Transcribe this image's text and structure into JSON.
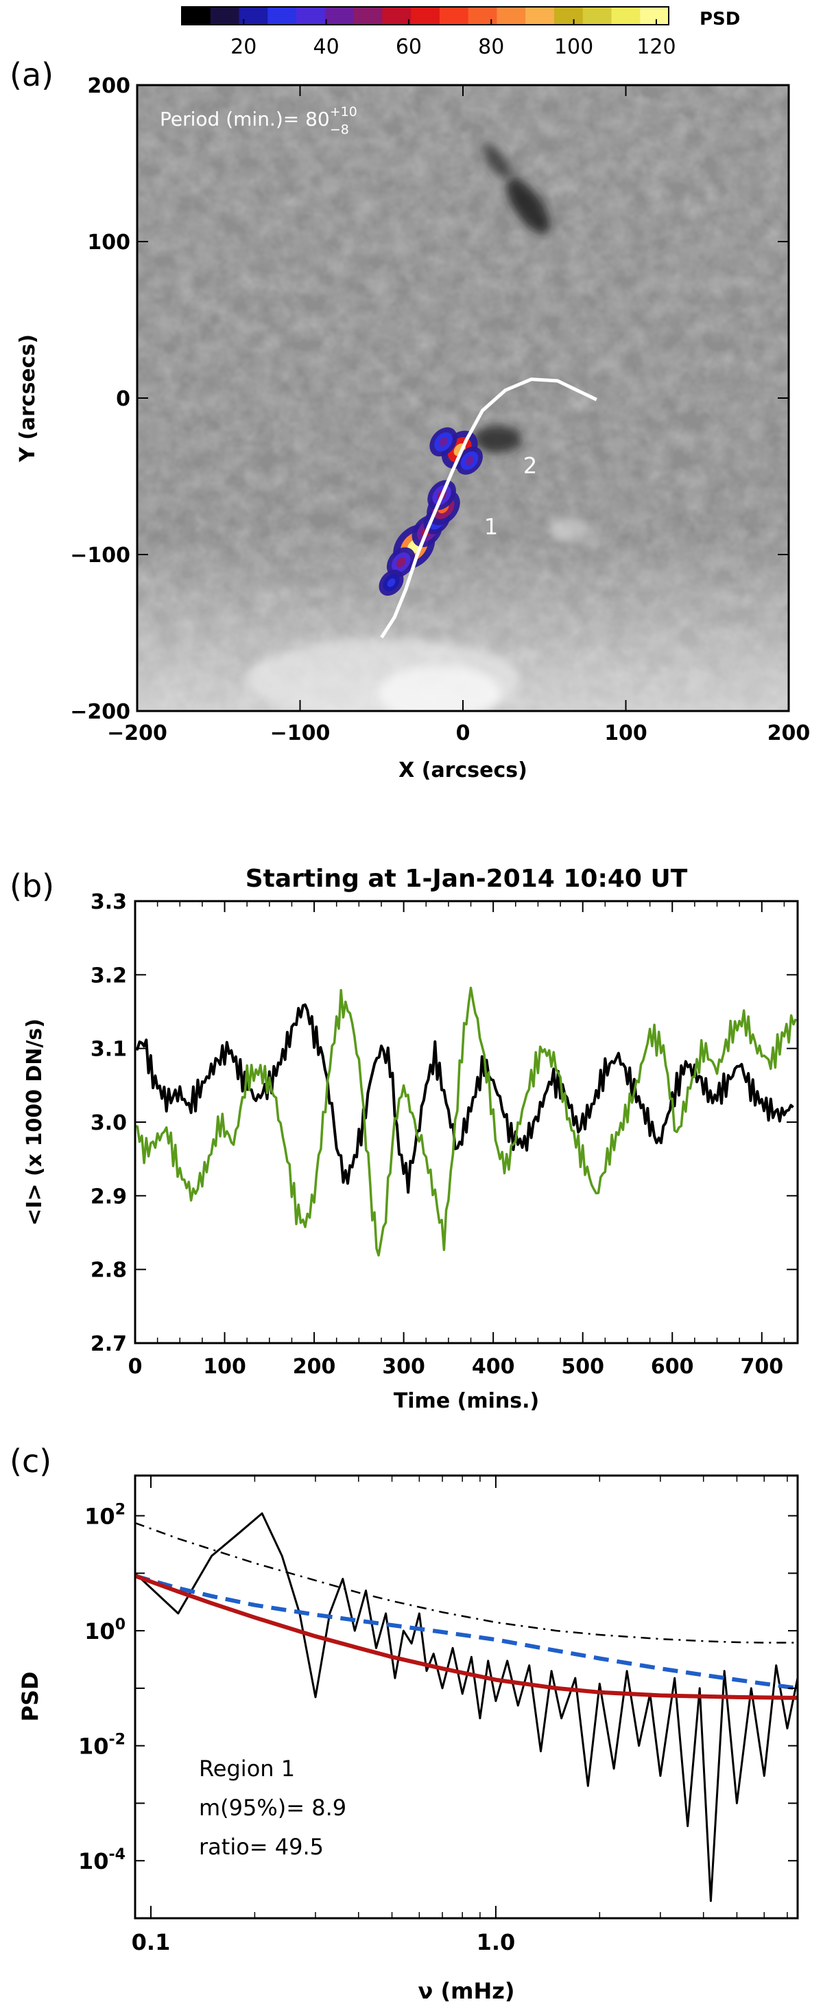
{
  "colorbar": {
    "label": "PSD",
    "ticks": [
      20,
      40,
      60,
      80,
      100,
      120
    ],
    "range": [
      5,
      123
    ],
    "colors": [
      "#000000",
      "#1a1040",
      "#1c1aa8",
      "#2a32e6",
      "#4b2bd8",
      "#6a1e9e",
      "#8b1a6a",
      "#c0102a",
      "#e01818",
      "#f53c1e",
      "#f8602a",
      "#f98a3a",
      "#fab04c",
      "#c8b01e",
      "#d6cc3a",
      "#f0ec5a",
      "#fcfa90"
    ]
  },
  "panels": {
    "a": {
      "letter": "(a)"
    },
    "b": {
      "letter": "(b)"
    },
    "c": {
      "letter": "(c)"
    }
  },
  "chart_data": [
    {
      "type": "heatmap",
      "panel": "(a)",
      "annotation": {
        "text": "Period (min.)= 80",
        "sup": "+10",
        "sub": "−8"
      },
      "xlabel": "X (arcsecs)",
      "ylabel": "Y (arcsecs)",
      "xlim": [
        -200,
        200
      ],
      "ylim": [
        -200,
        200
      ],
      "xticks": [
        -200,
        -100,
        0,
        100,
        200
      ],
      "yticks": [
        -200,
        -100,
        0,
        100,
        200
      ],
      "region_labels": [
        {
          "text": "1",
          "x": 13,
          "y": -87
        },
        {
          "text": "2",
          "x": 37,
          "y": -48
        }
      ],
      "curve": [
        [
          -50,
          -153
        ],
        [
          -42,
          -140
        ],
        [
          -35,
          -122
        ],
        [
          -28,
          -100
        ],
        [
          -21,
          -82
        ],
        [
          -14,
          -65
        ],
        [
          -7,
          -48
        ],
        [
          2,
          -27
        ],
        [
          12,
          -8
        ],
        [
          26,
          5
        ],
        [
          42,
          12
        ],
        [
          58,
          11
        ],
        [
          72,
          4
        ],
        [
          82,
          -1
        ]
      ],
      "psd_blobs": [
        {
          "x": -2,
          "y": -33,
          "value": 90
        },
        {
          "x": -12,
          "y": -28,
          "value": 45
        },
        {
          "x": 4,
          "y": -40,
          "value": 40
        },
        {
          "x": -30,
          "y": -95,
          "value": 120
        },
        {
          "x": -22,
          "y": -85,
          "value": 60
        },
        {
          "x": -38,
          "y": -105,
          "value": 50
        },
        {
          "x": -44,
          "y": -118,
          "value": 30
        },
        {
          "x": -16,
          "y": -78,
          "value": 40
        },
        {
          "x": -12,
          "y": -70,
          "value": 75
        },
        {
          "x": -13,
          "y": -62,
          "value": 50
        }
      ]
    },
    {
      "type": "line",
      "panel": "(b)",
      "title": "Starting at 1-Jan-2014 10:40 UT",
      "xlabel": "Time (mins.)",
      "ylabel": "<I> (x 1000 DN/s)",
      "xlim": [
        0,
        740
      ],
      "ylim": [
        2.7,
        3.3
      ],
      "xticks": [
        0,
        100,
        200,
        300,
        400,
        500,
        600,
        700
      ],
      "yticks": [
        2.7,
        2.8,
        2.9,
        3.0,
        3.1,
        3.2,
        3.3
      ],
      "series": [
        {
          "color": "#000000",
          "x": [
            0,
            10,
            20,
            35,
            50,
            60,
            75,
            90,
            105,
            120,
            135,
            150,
            165,
            180,
            190,
            200,
            212,
            225,
            235,
            245,
            255,
            265,
            275,
            285,
            295,
            305,
            315,
            325,
            335,
            345,
            360,
            375,
            390,
            405,
            420,
            435,
            450,
            465,
            480,
            495,
            510,
            525,
            540,
            555,
            570,
            585,
            600,
            615,
            630,
            645,
            660,
            675,
            690,
            705,
            720,
            735
          ],
          "y": [
            3.1,
            3.11,
            3.06,
            3.03,
            3.04,
            3.02,
            3.05,
            3.08,
            3.1,
            3.06,
            3.03,
            3.05,
            3.09,
            3.14,
            3.16,
            3.12,
            3.08,
            2.97,
            2.92,
            2.95,
            3.0,
            3.07,
            3.1,
            3.08,
            2.96,
            2.92,
            2.98,
            3.05,
            3.09,
            3.04,
            2.96,
            3.02,
            3.08,
            3.04,
            2.98,
            2.97,
            3.01,
            3.06,
            3.04,
            2.99,
            3.02,
            3.07,
            3.09,
            3.05,
            3.01,
            2.97,
            3.03,
            3.08,
            3.06,
            3.03,
            3.05,
            3.08,
            3.04,
            3.02,
            3.01,
            3.02
          ]
        },
        {
          "color": "#5a9a1a",
          "x": [
            0,
            10,
            20,
            35,
            50,
            65,
            80,
            95,
            110,
            125,
            140,
            155,
            170,
            180,
            190,
            200,
            210,
            220,
            230,
            240,
            250,
            258,
            265,
            272,
            280,
            290,
            300,
            312,
            325,
            335,
            345,
            355,
            365,
            375,
            385,
            395,
            405,
            415,
            425,
            440,
            455,
            470,
            485,
            500,
            515,
            530,
            545,
            560,
            575,
            590,
            605,
            620,
            635,
            650,
            665,
            680,
            695,
            710,
            725,
            738
          ],
          "y": [
            3.0,
            2.96,
            2.97,
            2.99,
            2.93,
            2.9,
            2.94,
            3.0,
            2.97,
            3.06,
            3.07,
            3.04,
            2.95,
            2.88,
            2.86,
            2.9,
            3.0,
            3.1,
            3.16,
            3.15,
            3.08,
            2.98,
            2.88,
            2.82,
            2.88,
            3.0,
            3.05,
            3.0,
            2.95,
            2.9,
            2.84,
            2.96,
            3.1,
            3.18,
            3.12,
            3.05,
            2.96,
            2.94,
            2.98,
            3.05,
            3.1,
            3.08,
            3.0,
            2.95,
            2.9,
            2.96,
            3.0,
            3.05,
            3.12,
            3.1,
            2.98,
            3.05,
            3.1,
            3.07,
            3.12,
            3.14,
            3.1,
            3.08,
            3.12,
            3.14
          ]
        }
      ]
    },
    {
      "type": "line",
      "panel": "(c)",
      "xlabel": "ν (mHz)",
      "ylabel": "PSD",
      "x_scale": "log",
      "y_scale": "log",
      "xlim": [
        0.09,
        7.5
      ],
      "ylim": [
        1e-05,
        500
      ],
      "xticks": [
        {
          "value": 0.1,
          "label": "0.1"
        },
        {
          "value": 1,
          "label": "1.0"
        }
      ],
      "yticks": [
        {
          "value": 0.0001,
          "base": "10",
          "exp": "-4"
        },
        {
          "value": 0.01,
          "base": "10",
          "exp": "-2"
        },
        {
          "value": 1,
          "base": "10",
          "exp": "0"
        },
        {
          "value": 100,
          "base": "10",
          "exp": "2"
        }
      ],
      "stats": [
        "Region 1",
        "m(95%)= 8.9",
        "ratio=  49.5"
      ],
      "series": [
        {
          "style": "solid-black",
          "x": [
            0.09,
            0.12,
            0.15,
            0.18,
            0.21,
            0.24,
            0.27,
            0.3,
            0.33,
            0.36,
            0.39,
            0.42,
            0.45,
            0.48,
            0.51,
            0.54,
            0.57,
            0.6,
            0.63,
            0.66,
            0.7,
            0.75,
            0.8,
            0.85,
            0.9,
            0.95,
            1.0,
            1.08,
            1.16,
            1.25,
            1.35,
            1.45,
            1.55,
            1.7,
            1.85,
            2.0,
            2.2,
            2.4,
            2.6,
            2.8,
            3.0,
            3.3,
            3.6,
            3.9,
            4.2,
            4.6,
            5.0,
            5.5,
            6.0,
            6.5,
            7.0,
            7.5
          ],
          "y": [
            10,
            2,
            20,
            50,
            110,
            20,
            2.0,
            0.07,
            2,
            8,
            1.0,
            5.0,
            0.5,
            2.0,
            0.15,
            1.0,
            0.6,
            2.0,
            0.2,
            0.4,
            0.1,
            0.5,
            0.08,
            0.35,
            0.03,
            0.3,
            0.06,
            0.3,
            0.05,
            0.25,
            0.008,
            0.2,
            0.03,
            0.15,
            0.002,
            0.12,
            0.004,
            0.2,
            0.01,
            0.08,
            0.003,
            0.15,
            0.0004,
            0.1,
            2e-05,
            0.2,
            0.001,
            0.1,
            0.003,
            0.25,
            0.02,
            0.15
          ]
        },
        {
          "style": "dashed-blue",
          "color": "#1f5fc8",
          "x": [
            0.09,
            0.12,
            0.15,
            0.2,
            0.3,
            0.4,
            0.5,
            0.7,
            1.0,
            1.5,
            2.0,
            3.0,
            4.0,
            5.0,
            6.0,
            7.5
          ],
          "y": [
            9,
            5.5,
            4.0,
            2.8,
            1.9,
            1.5,
            1.25,
            0.95,
            0.7,
            0.45,
            0.33,
            0.22,
            0.17,
            0.14,
            0.12,
            0.1
          ]
        },
        {
          "style": "solid-red",
          "color": "#b51414",
          "x": [
            0.09,
            0.12,
            0.15,
            0.2,
            0.3,
            0.4,
            0.5,
            0.7,
            1.0,
            1.5,
            2.0,
            3.0,
            4.0,
            5.0,
            6.0,
            7.5
          ],
          "y": [
            9,
            4.8,
            3.0,
            1.7,
            0.8,
            0.5,
            0.35,
            0.22,
            0.14,
            0.1,
            0.085,
            0.075,
            0.072,
            0.07,
            0.069,
            0.068
          ]
        },
        {
          "style": "dashdot-black",
          "x": [
            0.09,
            0.12,
            0.15,
            0.2,
            0.3,
            0.4,
            0.5,
            0.7,
            1.0,
            1.5,
            2.0,
            3.0,
            4.0,
            5.0,
            6.0,
            7.5
          ],
          "y": [
            75,
            40,
            26,
            15,
            7.5,
            4.6,
            3.3,
            2.1,
            1.4,
            1.0,
            0.85,
            0.72,
            0.66,
            0.63,
            0.62,
            0.62
          ]
        }
      ]
    }
  ]
}
